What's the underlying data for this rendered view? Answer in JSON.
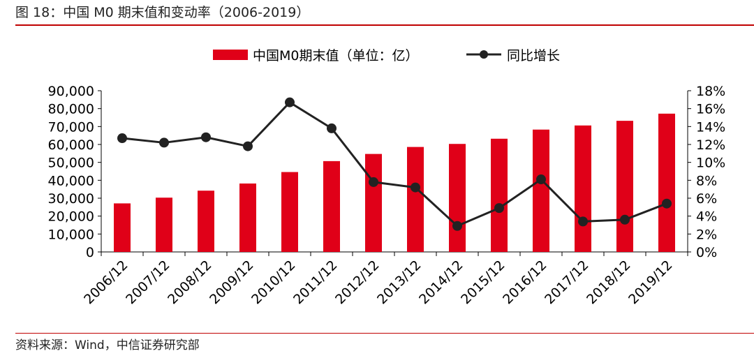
{
  "title": "图 18：中国 M0 期末值和变动率（2006-2019）",
  "source": "资料来源：Wind，中信证券研究部",
  "colors": {
    "bar": "#e00018",
    "line": "#222222",
    "rule": "#c00000"
  },
  "chart_data": {
    "type": "bar+line",
    "categories": [
      "2006/12",
      "2007/12",
      "2008/12",
      "2009/12",
      "2010/12",
      "2011/12",
      "2012/12",
      "2013/12",
      "2014/12",
      "2015/12",
      "2016/12",
      "2017/12",
      "2018/12",
      "2019/12"
    ],
    "series": [
      {
        "name": "中国M0期末值（单位：亿）",
        "type": "bar",
        "axis": "left",
        "values": [
          27100,
          30300,
          34200,
          38200,
          44600,
          50700,
          54700,
          58600,
          60300,
          63200,
          68300,
          70600,
          73200,
          77200
        ]
      },
      {
        "name": "同比增长",
        "type": "line",
        "axis": "right",
        "values": [
          12.7,
          12.2,
          12.8,
          11.8,
          16.7,
          13.8,
          7.8,
          7.2,
          2.9,
          4.9,
          8.1,
          3.4,
          3.6,
          5.4
        ]
      }
    ],
    "left_axis": {
      "min": 0,
      "max": 90000,
      "step": 10000,
      "tick_labels": [
        "0",
        "10,000",
        "20,000",
        "30,000",
        "40,000",
        "50,000",
        "60,000",
        "70,000",
        "80,000",
        "90,000"
      ]
    },
    "right_axis": {
      "min": 0,
      "max": 18,
      "step": 2,
      "tick_labels": [
        "0%",
        "2%",
        "4%",
        "6%",
        "8%",
        "10%",
        "12%",
        "14%",
        "16%",
        "18%"
      ]
    },
    "legend_position": "top-center",
    "grid": false
  }
}
